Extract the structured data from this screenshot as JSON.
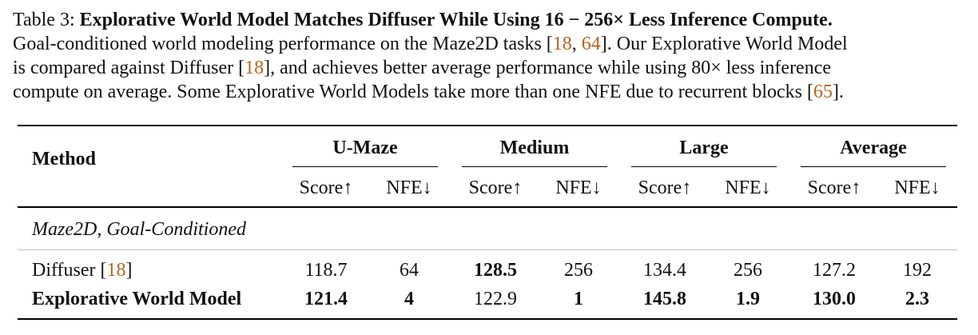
{
  "caption": {
    "label": "Table 3:",
    "title": "Explorative World Model Matches Diffuser While Using 16 − 256× Less Inference Compute.",
    "line2_a": "Goal-conditioned world modeling performance on the Maze2D tasks [",
    "cite1": "18",
    "sep1": ", ",
    "cite2": "64",
    "line2_b": "]. Our Explorative World Model",
    "line3_a": "is compared against Diffuser [",
    "cite3": "18",
    "line3_b": "], and achieves better average performance while using 80× less inference",
    "line4_a": "compute on average. Some Explorative World Models take more than one NFE due to recurrent blocks [",
    "cite4": "65",
    "line4_b": "]."
  },
  "table": {
    "method_header": "Method",
    "groups": [
      "U-Maze",
      "Medium",
      "Large",
      "Average"
    ],
    "subheaders": [
      "Score↑",
      "NFE↓",
      "Score↑",
      "NFE↓",
      "Score↑",
      "NFE↓",
      "Score↑",
      "NFE↓"
    ],
    "section_label": "Maze2D, Goal-Conditioned",
    "rows": [
      {
        "method": "Diffuser [",
        "method_cite": "18",
        "method_end": "]",
        "values": [
          "118.7",
          "64",
          "128.5",
          "256",
          "134.4",
          "256",
          "127.2",
          "192"
        ]
      },
      {
        "method": "Explorative World Model",
        "values": [
          "121.4",
          "4",
          "122.9",
          "1",
          "145.8",
          "1.9",
          "130.0",
          "2.3"
        ]
      }
    ]
  }
}
